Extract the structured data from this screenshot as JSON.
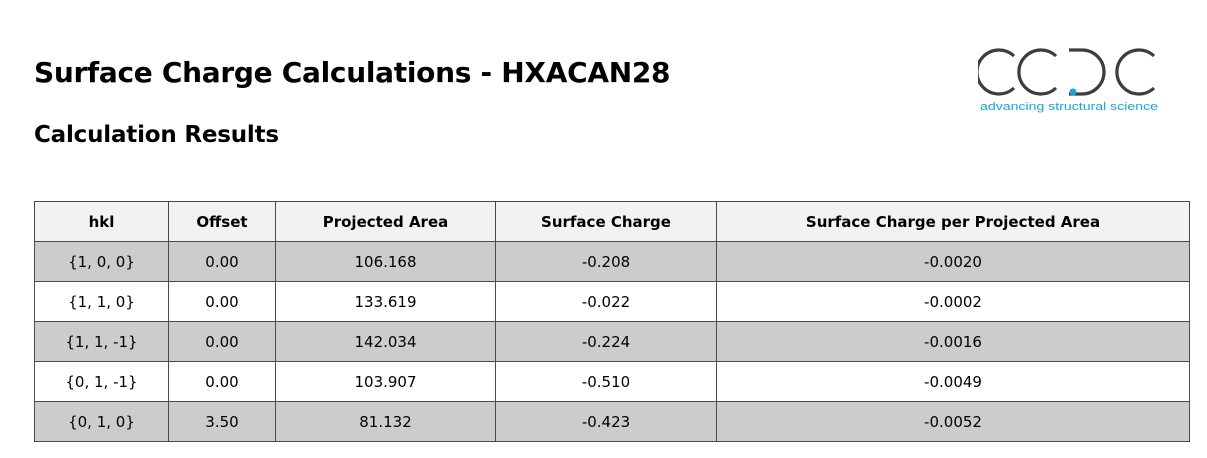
{
  "header": {
    "title": "Surface Charge Calculations - HXACAN28",
    "subtitle": "Calculation Results"
  },
  "logo": {
    "wordmark": "CCDC",
    "tagline": "advancing structural science",
    "text_color": "#3d3d3d",
    "accent_color": "#1aa3d8"
  },
  "table": {
    "columns": [
      "hkl",
      "Offset",
      "Projected Area",
      "Surface Charge",
      "Surface Charge per Projected Area"
    ],
    "rows": [
      [
        "{1, 0, 0}",
        "0.00",
        "106.168",
        "-0.208",
        "-0.0020"
      ],
      [
        "{1, 1, 0}",
        "0.00",
        "133.619",
        "-0.022",
        "-0.0002"
      ],
      [
        "{1, 1, -1}",
        "0.00",
        "142.034",
        "-0.224",
        "-0.0016"
      ],
      [
        "{0, 1, -1}",
        "0.00",
        "103.907",
        "-0.510",
        "-0.0049"
      ],
      [
        "{0, 1, 0}",
        "3.50",
        "81.132",
        "-0.423",
        "-0.0052"
      ]
    ],
    "shaded_row_color": "#cccccc",
    "header_row_color": "#f2f2f2"
  }
}
